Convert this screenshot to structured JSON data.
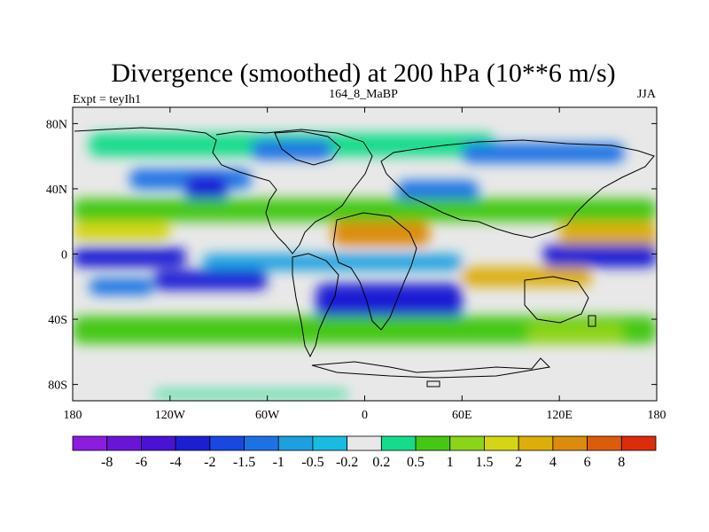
{
  "chart_data": {
    "type": "heatmap",
    "title": "Divergence (smoothed) at 200 hPa (10**6 m/s)",
    "left_string": "Expt = teyIh1",
    "center_string": "164_8_MaBP",
    "right_string": "JJA",
    "x_range": [
      -180,
      180
    ],
    "y_range": [
      -90,
      90
    ],
    "x_ticks": [
      {
        "value": -180,
        "label": "180"
      },
      {
        "value": -120,
        "label": "120W"
      },
      {
        "value": -60,
        "label": "60W"
      },
      {
        "value": 0,
        "label": "0"
      },
      {
        "value": 60,
        "label": "60E"
      },
      {
        "value": 120,
        "label": "120E"
      },
      {
        "value": 180,
        "label": "180"
      }
    ],
    "y_ticks": [
      {
        "value": 80,
        "label": "80N"
      },
      {
        "value": 40,
        "label": "40N"
      },
      {
        "value": 0,
        "label": "0"
      },
      {
        "value": -40,
        "label": "40S"
      },
      {
        "value": -80,
        "label": "80S"
      }
    ],
    "levels": [
      {
        "value": -8,
        "label": "-8"
      },
      {
        "value": -6,
        "label": "-6"
      },
      {
        "value": -4,
        "label": "-4"
      },
      {
        "value": -2,
        "label": "-2"
      },
      {
        "value": -1.5,
        "label": "-1.5"
      },
      {
        "value": -1,
        "label": "-1"
      },
      {
        "value": -0.5,
        "label": "-0.5"
      },
      {
        "value": -0.2,
        "label": "-0.2"
      },
      {
        "value": 0.2,
        "label": "0.2"
      },
      {
        "value": 0.5,
        "label": "0.5"
      },
      {
        "value": 1,
        "label": "1"
      },
      {
        "value": 1.5,
        "label": "1.5"
      },
      {
        "value": 2,
        "label": "2"
      },
      {
        "value": 4,
        "label": "4"
      },
      {
        "value": 6,
        "label": "6"
      },
      {
        "value": 8,
        "label": "8"
      }
    ],
    "colors": [
      "#8c1ce0",
      "#6a14d8",
      "#4a12d4",
      "#1c1ed4",
      "#1848e0",
      "#1c72e4",
      "#1ca0e0",
      "#18bce0",
      "#e8e8e8",
      "#14dc8c",
      "#44c814",
      "#8cd418",
      "#d4d614",
      "#dcae0a",
      "#dc8c0a",
      "#dc5c0a",
      "#dc2c0a"
    ],
    "bands": [
      {
        "lat_min": 60,
        "lat_max": 74,
        "lon_min": -170,
        "lon_max": 80,
        "class": 9
      },
      {
        "lat_min": 58,
        "lat_max": 70,
        "lon_min": -70,
        "lon_max": -20,
        "class": 5
      },
      {
        "lat_min": 56,
        "lat_max": 68,
        "lon_min": 60,
        "lon_max": 160,
        "class": 5
      },
      {
        "lat_min": 40,
        "lat_max": 52,
        "lon_min": -145,
        "lon_max": -70,
        "class": 5
      },
      {
        "lat_min": 30,
        "lat_max": 48,
        "lon_min": -110,
        "lon_max": -85,
        "class": 3
      },
      {
        "lat_min": 30,
        "lat_max": 45,
        "lon_min": 20,
        "lon_max": 70,
        "class": 5
      },
      {
        "lat_min": 20,
        "lat_max": 34,
        "lon_min": -180,
        "lon_max": 180,
        "class": 10
      },
      {
        "lat_min": 8,
        "lat_max": 20,
        "lon_min": -180,
        "lon_max": -120,
        "class": 12
      },
      {
        "lat_min": 5,
        "lat_max": 20,
        "lon_min": -20,
        "lon_max": 40,
        "class": 14
      },
      {
        "lat_min": 2,
        "lat_max": 20,
        "lon_min": 120,
        "lon_max": 180,
        "class": 13
      },
      {
        "lat_min": -8,
        "lat_max": 4,
        "lon_min": -180,
        "lon_max": -110,
        "class": 3
      },
      {
        "lat_min": -8,
        "lat_max": 6,
        "lon_min": 110,
        "lon_max": 180,
        "class": 3
      },
      {
        "lat_min": -10,
        "lat_max": 0,
        "lon_min": -100,
        "lon_max": 60,
        "class": 6
      },
      {
        "lat_min": -22,
        "lat_max": -10,
        "lon_min": -130,
        "lon_max": -60,
        "class": 3
      },
      {
        "lat_min": -40,
        "lat_max": -18,
        "lon_min": -30,
        "lon_max": 60,
        "class": 3
      },
      {
        "lat_min": -20,
        "lat_max": -8,
        "lon_min": 60,
        "lon_max": 140,
        "class": 13
      },
      {
        "lat_min": -25,
        "lat_max": -15,
        "lon_min": -170,
        "lon_max": -130,
        "class": 5
      },
      {
        "lat_min": -55,
        "lat_max": -38,
        "lon_min": -180,
        "lon_max": 180,
        "class": 10
      },
      {
        "lat_min": -55,
        "lat_max": -42,
        "lon_min": 100,
        "lon_max": 160,
        "class": 11
      },
      {
        "lat_min": -88,
        "lat_max": -84,
        "lon_min": -130,
        "lon_max": -10,
        "class": 9
      }
    ]
  }
}
